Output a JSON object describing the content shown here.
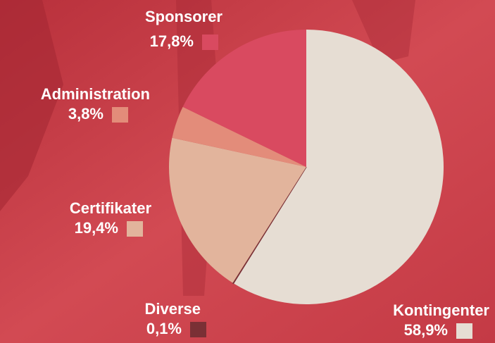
{
  "chart_data": {
    "type": "pie",
    "categories": [
      "Kontingenter",
      "Diverse",
      "Certifikater",
      "Administration",
      "Sponsorer"
    ],
    "values": [
      58.9,
      0.1,
      19.4,
      3.8,
      17.8
    ],
    "value_labels": [
      "58,9%",
      "0,1%",
      "19,4%",
      "3,8%",
      "17,8%"
    ],
    "colors": [
      "#e6ddd3",
      "#7a3035",
      "#e2b49c",
      "#e38c7a",
      "#d94a60"
    ]
  }
}
